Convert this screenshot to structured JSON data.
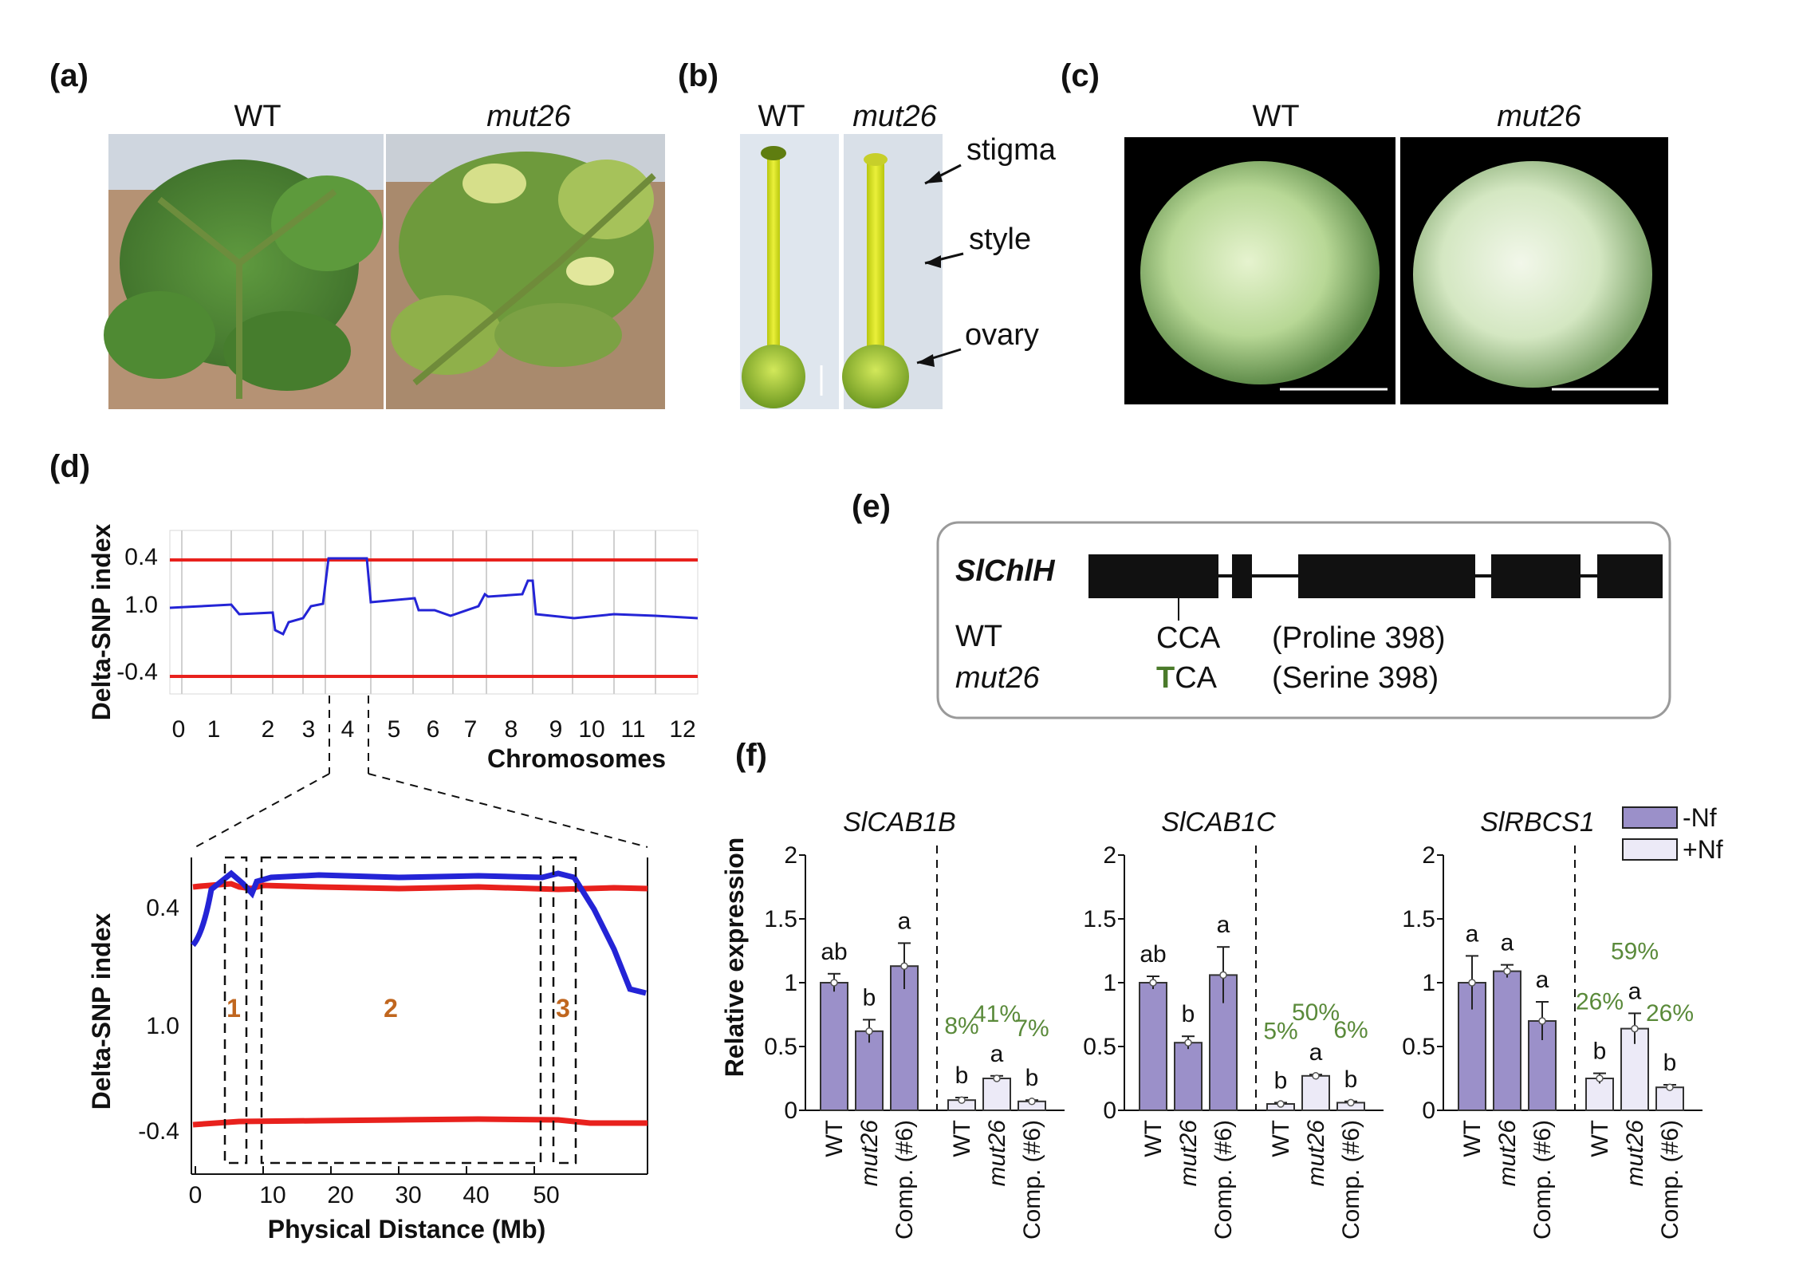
{
  "panels": {
    "a": {
      "label": "(a)",
      "left": "WT",
      "right": "mut26"
    },
    "b": {
      "label": "(b)",
      "left": "WT",
      "right": "mut26",
      "annotations": [
        "stigma",
        "style",
        "ovary"
      ]
    },
    "c": {
      "label": "(c)",
      "left": "WT",
      "right": "mut26"
    },
    "d": {
      "label": "(d)",
      "ylabel": "Delta-SNP index",
      "xlabel": "Chromosomes",
      "xlabel_zoom": "Physical Distance (Mb)",
      "yticks": [
        "0.4",
        "1.0",
        "-0.4"
      ],
      "chromosomes": [
        "0",
        "1",
        "2",
        "3",
        "4",
        "5",
        "6",
        "7",
        "8",
        "9",
        "10",
        "11",
        "12"
      ],
      "zoom_xticks": [
        "0",
        "10",
        "20",
        "30",
        "40",
        "50"
      ],
      "regions": [
        "1",
        "2",
        "3"
      ]
    },
    "e": {
      "label": "(e)",
      "gene": "SlChlH",
      "rows": [
        {
          "genotype": "WT",
          "codon_first": "C",
          "codon_rest": "CA",
          "aa": "(Proline 398)"
        },
        {
          "genotype": "mut26",
          "codon_first": "T",
          "codon_rest": "CA",
          "aa": "(Serine 398)"
        }
      ]
    },
    "f": {
      "label": "(f)"
    }
  },
  "colors": {
    "dark_bar": "#9b90c9",
    "light_bar": "#eceaf7",
    "red_line": "#e8211d",
    "blue_line": "#2424d6",
    "green_text": "#5a8a3a",
    "region_label": "#c0661e"
  },
  "chart_data": {
    "type": "bar",
    "ylabel": "Relative expression",
    "ylim": [
      0,
      2
    ],
    "yticks": [
      "0",
      "0.5",
      "1",
      "1.5",
      "2"
    ],
    "categories": [
      "WT",
      "mut26",
      "Comp. (#6)"
    ],
    "legend": [
      "-Nf",
      "+Nf"
    ],
    "legend_position": "top-right",
    "panels": [
      {
        "gene": "SlCAB1B",
        "series": [
          {
            "name": "-Nf",
            "values": [
              1.0,
              0.62,
              1.13
            ],
            "errors": [
              0.07,
              0.09,
              0.18
            ],
            "letters": [
              "ab",
              "b",
              "a"
            ]
          },
          {
            "name": "+Nf",
            "values": [
              0.08,
              0.25,
              0.07
            ],
            "errors": [
              0.02,
              0.02,
              0.01
            ],
            "letters": [
              "b",
              "a",
              "b"
            ],
            "percents": [
              "8%",
              "41%",
              "7%"
            ]
          }
        ]
      },
      {
        "gene": "SlCAB1C",
        "series": [
          {
            "name": "-Nf",
            "values": [
              1.0,
              0.53,
              1.06
            ],
            "errors": [
              0.05,
              0.05,
              0.22
            ],
            "letters": [
              "ab",
              "b",
              "a"
            ]
          },
          {
            "name": "+Nf",
            "values": [
              0.05,
              0.27,
              0.06
            ],
            "errors": [
              0.01,
              0.01,
              0.01
            ],
            "letters": [
              "b",
              "a",
              "b"
            ],
            "percents": [
              "5%",
              "50%",
              "6%"
            ]
          }
        ]
      },
      {
        "gene": "SlRBCS1",
        "series": [
          {
            "name": "-Nf",
            "values": [
              1.0,
              1.09,
              0.7
            ],
            "errors": [
              0.21,
              0.05,
              0.15
            ],
            "letters": [
              "a",
              "a",
              "a"
            ]
          },
          {
            "name": "+Nf",
            "values": [
              0.25,
              0.64,
              0.18
            ],
            "errors": [
              0.04,
              0.12,
              0.02
            ],
            "letters": [
              "b",
              "a",
              "b"
            ],
            "percents": [
              "26%",
              "59%",
              "26%"
            ]
          }
        ]
      }
    ]
  }
}
